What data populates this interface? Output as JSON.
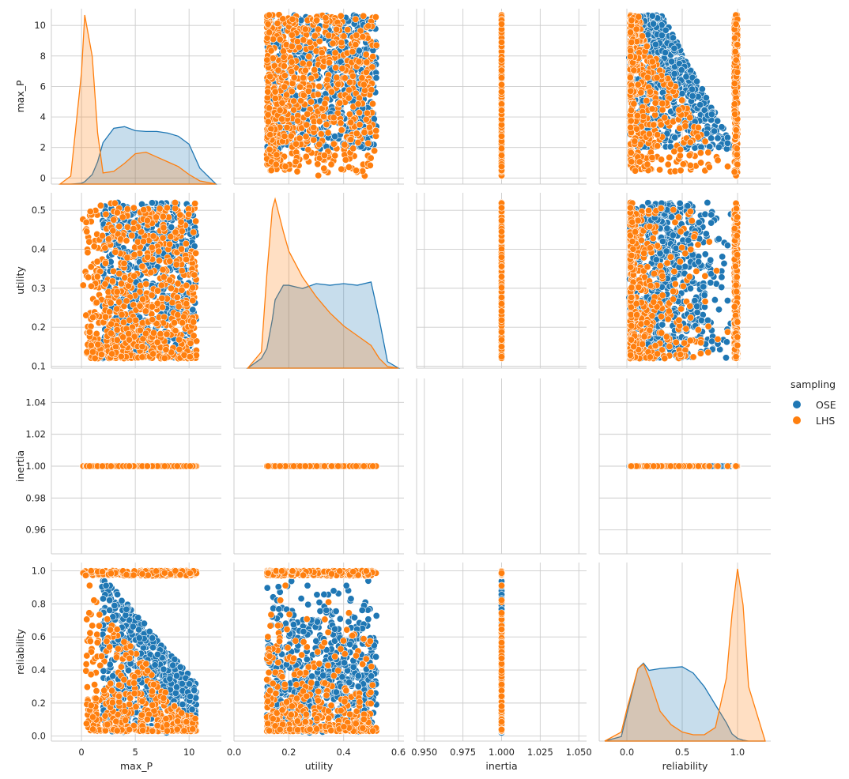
{
  "chart_data": {
    "type": "scatter",
    "legend": {
      "title": "sampling",
      "placement": "right",
      "entries": [
        {
          "name": "OSE",
          "color": "#1f77b4"
        },
        {
          "name": "LHS",
          "color": "#ff7f0e"
        }
      ]
    },
    "variables": [
      {
        "name": "max_P",
        "range": [
          -2.8,
          13.0
        ],
        "ticks": [
          0,
          5,
          10
        ],
        "ylim": [
          -0.4,
          11.1
        ],
        "yticks": [
          0,
          2,
          4,
          6,
          8,
          10
        ]
      },
      {
        "name": "utility",
        "range": [
          0.0,
          0.62
        ],
        "ticks": [
          0.0,
          0.2,
          0.4,
          0.6
        ],
        "ylim": [
          0.095,
          0.545
        ],
        "yticks": [
          0.1,
          0.2,
          0.3,
          0.4,
          0.5
        ]
      },
      {
        "name": "inertia",
        "range": [
          0.945,
          1.055
        ],
        "ticks": [
          0.95,
          0.975,
          1.0,
          1.025,
          1.05
        ],
        "ylim": [
          0.945,
          1.055
        ],
        "yticks": [
          0.96,
          0.98,
          1.0,
          1.02,
          1.04
        ]
      },
      {
        "name": "reliability",
        "range": [
          -0.25,
          1.3
        ],
        "ticks": [
          0.0,
          0.5,
          1.0
        ],
        "ylim": [
          -0.03,
          1.05
        ],
        "yticks": [
          0.0,
          0.2,
          0.4,
          0.6,
          0.8,
          1.0
        ]
      }
    ],
    "tick_labels": {
      "max_P": [
        "0",
        "5",
        "10"
      ],
      "max_P_y": [
        "0",
        "2",
        "4",
        "6",
        "8",
        "10"
      ],
      "utility": [
        "0.0",
        "0.2",
        "0.4",
        "0.6"
      ],
      "utility_y": [
        "0.1",
        "0.2",
        "0.3",
        "0.4",
        "0.5"
      ],
      "inertia": [
        "0.950",
        "0.975",
        "1.000",
        "1.025",
        "1.050"
      ],
      "inertia_y": [
        "0.96",
        "0.98",
        "1.00",
        "1.02",
        "1.04"
      ],
      "reliability": [
        "0.0",
        "0.5",
        "1.0"
      ],
      "reliability_y": [
        "0.0",
        "0.2",
        "0.4",
        "0.6",
        "0.8",
        "1.0"
      ]
    },
    "series_ranges": {
      "OSE": {
        "max_P": [
          1.9,
          10.7
        ],
        "utility": [
          0.12,
          0.52
        ],
        "inertia": [
          1.0,
          1.0
        ],
        "reliability": [
          0.02,
          0.95
        ]
      },
      "LHS": {
        "max_P": [
          0.1,
          10.7
        ],
        "utility": [
          0.12,
          0.52
        ],
        "inertia": [
          1.0,
          1.0
        ],
        "reliability": [
          0.02,
          1.0
        ]
      }
    },
    "kde": {
      "max_P": {
        "x": [
          -2,
          -1,
          0,
          0.3,
          1,
          1.5,
          2,
          3,
          4,
          5,
          6,
          7,
          8,
          9,
          10,
          11,
          12.5
        ],
        "OSE": [
          0,
          0,
          0.05,
          0.15,
          0.6,
          1.4,
          2.6,
          3.5,
          3.6,
          3.35,
          3.3,
          3.3,
          3.2,
          3.0,
          2.5,
          1.0,
          0
        ],
        "LHS": [
          0,
          0.5,
          7.0,
          10.6,
          8.0,
          3.2,
          0.7,
          0.8,
          1.3,
          1.9,
          2.0,
          1.7,
          1.4,
          1.1,
          0.6,
          0.2,
          0
        ]
      },
      "utility": {
        "x": [
          0.05,
          0.1,
          0.12,
          0.14,
          0.15,
          0.18,
          0.2,
          0.25,
          0.3,
          0.35,
          0.4,
          0.45,
          0.5,
          0.53,
          0.56,
          0.6
        ],
        "OSE": [
          0,
          0.03,
          0.06,
          0.15,
          0.21,
          0.255,
          0.255,
          0.245,
          0.26,
          0.255,
          0.26,
          0.255,
          0.265,
          0.15,
          0.02,
          0
        ],
        "LHS": [
          0,
          0.05,
          0.29,
          0.49,
          0.52,
          0.42,
          0.36,
          0.28,
          0.22,
          0.17,
          0.13,
          0.1,
          0.07,
          0.03,
          0.005,
          0
        ]
      },
      "reliability": {
        "x": [
          -0.2,
          -0.05,
          0.0,
          0.1,
          0.15,
          0.2,
          0.3,
          0.4,
          0.5,
          0.6,
          0.7,
          0.8,
          0.9,
          0.95,
          1.0,
          1.05,
          1.1,
          1.25
        ],
        "OSE": [
          0,
          0.05,
          0.3,
          0.8,
          0.86,
          0.78,
          0.8,
          0.81,
          0.82,
          0.75,
          0.6,
          0.4,
          0.2,
          0.08,
          0.03,
          0.01,
          0,
          0
        ],
        "LHS": [
          0,
          0.1,
          0.35,
          0.8,
          0.85,
          0.7,
          0.33,
          0.18,
          0.1,
          0.07,
          0.07,
          0.15,
          0.7,
          1.4,
          1.9,
          1.5,
          0.6,
          0
        ]
      }
    }
  }
}
